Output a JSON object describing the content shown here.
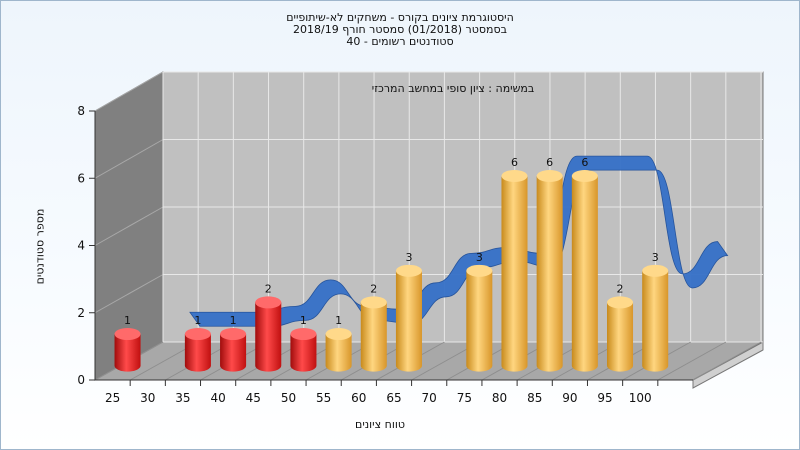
{
  "chart_data": {
    "type": "bar",
    "title_lines": [
      "היסטוגרמת ציונים בקורס - משחקים לא-שיתופיים",
      "בסמסטר  (01/2018)  סמסטר חורף 2018/19",
      "סטודנטים רשומים - 40"
    ],
    "annotation": "במשימה : ציון סופי במחשב המרכזי",
    "xlabel": "טווח ציונים",
    "ylabel": "מספר סטודנטים",
    "ylim": [
      0,
      8
    ],
    "yticks": [
      "0",
      "2",
      "4",
      "6",
      "8"
    ],
    "categories": [
      "25",
      "30",
      "35",
      "40",
      "45",
      "50",
      "55",
      "60",
      "65",
      "70",
      "75",
      "80",
      "85",
      "90",
      "95",
      "100"
    ],
    "series": [
      {
        "values": [
          1,
          0,
          1,
          1,
          2,
          1,
          1,
          2,
          3,
          0,
          3,
          6,
          6,
          6,
          2,
          3
        ],
        "data_labels": [
          "1",
          "",
          "1",
          "1",
          "2",
          "1",
          "1",
          "2",
          "3",
          "",
          "3",
          "6",
          "6",
          "6",
          "2",
          "3"
        ],
        "bar_colors": [
          "#e82020",
          "#e82020",
          "#e82020",
          "#e82020",
          "#e82020",
          "#e82020",
          "#f0b040",
          "#f0b040",
          "#f0b040",
          "#f0b040",
          "#f0b040",
          "#f0b040",
          "#f0b040",
          "#f0b040",
          "#f0b040",
          "#f0b040"
        ]
      }
    ],
    "distribution_ribbon": {
      "values": [
        null,
        1.5,
        1.5,
        1.5,
        1.7,
        2.6,
        1.7,
        1.6,
        2.5,
        3.5,
        3.7,
        3.5,
        6.8,
        6.8,
        6.8,
        2.8,
        3.9
      ],
      "color": "#3570c8",
      "shadow_color": "#555555"
    },
    "grid": true,
    "legend": "none",
    "colors": {
      "back_wall": "#c0c0c0",
      "side_wall": "#808080",
      "floor": "#a8a8a8",
      "grid": "#e8e8e8"
    }
  }
}
